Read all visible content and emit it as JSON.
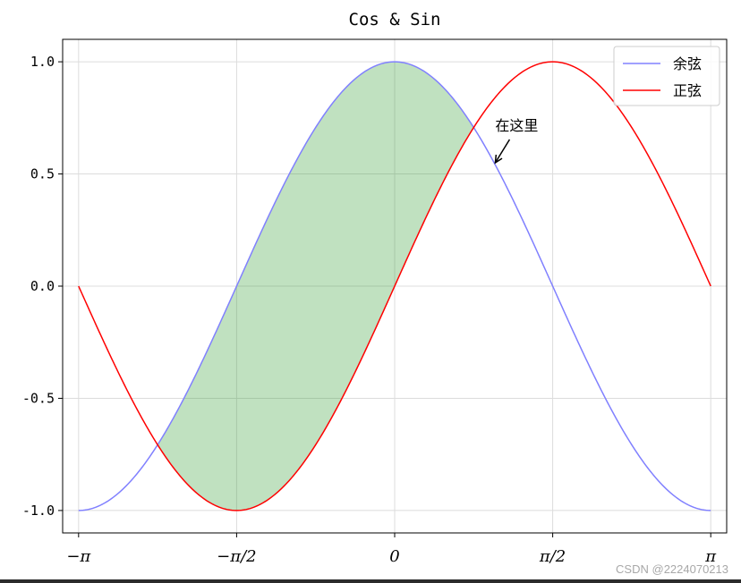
{
  "chart_data": {
    "type": "line",
    "title": "Cos & Sin",
    "xlabel": "",
    "ylabel": "",
    "xlim": [
      -3.3,
      3.3
    ],
    "ylim": [
      -1.1,
      1.1
    ],
    "x_ticks": [
      {
        "value": -3.14159265,
        "label": "−π"
      },
      {
        "value": -1.5707963,
        "label": "−π/2"
      },
      {
        "value": 0,
        "label": "0"
      },
      {
        "value": 1.5707963,
        "label": "π/2"
      },
      {
        "value": 3.14159265,
        "label": "π"
      }
    ],
    "y_ticks": [
      {
        "value": 1.0,
        "label": "1.0"
      },
      {
        "value": 0.5,
        "label": "0.5"
      },
      {
        "value": 0.0,
        "label": "0.0"
      },
      {
        "value": -0.5,
        "label": "-0.5"
      },
      {
        "value": -1.0,
        "label": "-1.0"
      }
    ],
    "grid": true,
    "legend_position": "top-right",
    "x": [
      -3.1416,
      -2.9452,
      -2.7489,
      -2.5525,
      -2.3562,
      -2.1598,
      -1.9635,
      -1.7671,
      -1.5708,
      -1.3744,
      -1.1781,
      -0.9817,
      -0.7854,
      -0.589,
      -0.3927,
      -0.1963,
      0.0,
      0.1963,
      0.3927,
      0.589,
      0.7854,
      0.9817,
      1.1781,
      1.3744,
      1.5708,
      1.7671,
      1.9635,
      2.1598,
      2.3562,
      2.5525,
      2.7489,
      2.9452,
      3.1416
    ],
    "series": [
      {
        "name": "余弦",
        "color": "#8080ff",
        "values": [
          -1.0,
          -0.9808,
          -0.9239,
          -0.8315,
          -0.7071,
          -0.5556,
          -0.3827,
          -0.1951,
          0.0,
          0.1951,
          0.3827,
          0.5556,
          0.7071,
          0.8315,
          0.9239,
          0.9808,
          1.0,
          0.9808,
          0.9239,
          0.8315,
          0.7071,
          0.5556,
          0.3827,
          0.1951,
          0.0,
          -0.1951,
          -0.3827,
          -0.5556,
          -0.7071,
          -0.8315,
          -0.9239,
          -0.9808,
          -1.0
        ]
      },
      {
        "name": "正弦",
        "color": "#ff0000",
        "values": [
          0.0,
          -0.1951,
          -0.3827,
          -0.5556,
          -0.7071,
          -0.8315,
          -0.9239,
          -0.9808,
          -1.0,
          -0.9808,
          -0.9239,
          -0.8315,
          -0.7071,
          -0.5556,
          -0.3827,
          -0.1951,
          0.0,
          0.1951,
          0.3827,
          0.5556,
          0.7071,
          0.8315,
          0.9239,
          0.9808,
          1.0,
          0.9808,
          0.9239,
          0.8315,
          0.7071,
          0.5556,
          0.3827,
          0.1951,
          0.0
        ]
      }
    ],
    "fill_between": {
      "color": "#2e9a2e",
      "alpha": 0.3,
      "x_range": [
        -2.3562,
        0.7854
      ],
      "between": [
        "余弦",
        "正弦"
      ]
    },
    "annotation": {
      "text": "在这里",
      "point": [
        1.0,
        0.55
      ]
    }
  },
  "watermark": "CSDN @2224070213"
}
